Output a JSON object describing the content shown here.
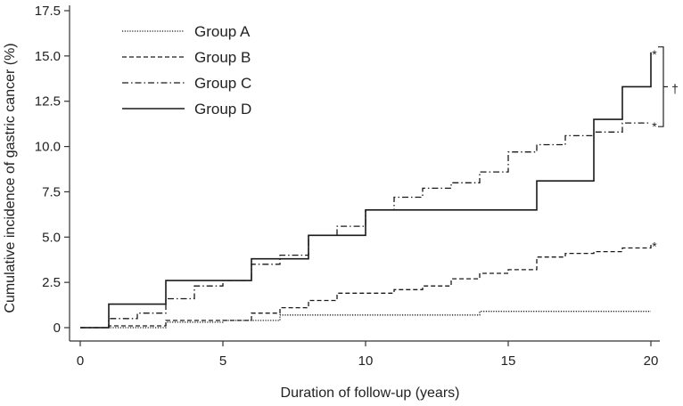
{
  "chart_data": {
    "type": "line",
    "step": true,
    "xlabel": "Duration of follow-up (years)",
    "ylabel": "Cumulative incidence of gastric cancer  (%)",
    "xlim": [
      0,
      20
    ],
    "ylim": [
      0,
      17.5
    ],
    "xticks": [
      {
        "value": 0,
        "label": "0"
      },
      {
        "value": 5,
        "label": "5"
      },
      {
        "value": 10,
        "label": "10"
      },
      {
        "value": 15,
        "label": "15"
      },
      {
        "value": 20,
        "label": "20"
      }
    ],
    "yticks": [
      {
        "value": 0,
        "label": "0"
      },
      {
        "value": 2.5,
        "label": "2.5"
      },
      {
        "value": 5,
        "label": "5.0"
      },
      {
        "value": 7.5,
        "label": "7.5"
      },
      {
        "value": 10,
        "label": "10.0"
      },
      {
        "value": 12.5,
        "label": "12.5"
      },
      {
        "value": 15,
        "label": "15.0"
      },
      {
        "value": 17.5,
        "label": "17.5"
      }
    ],
    "grid": false,
    "legend_position": "top-left",
    "series": [
      {
        "name": "Group A",
        "line_style": "dotted",
        "points": [
          [
            0,
            0
          ],
          [
            3,
            0
          ],
          [
            3,
            0.3
          ],
          [
            5,
            0.3
          ],
          [
            5,
            0.4
          ],
          [
            7,
            0.4
          ],
          [
            7,
            0.7
          ],
          [
            14,
            0.7
          ],
          [
            14,
            0.9
          ],
          [
            20,
            0.9
          ]
        ]
      },
      {
        "name": "Group B",
        "line_style": "dashed",
        "points": [
          [
            0,
            0
          ],
          [
            1,
            0
          ],
          [
            1,
            0.1
          ],
          [
            3,
            0.1
          ],
          [
            3,
            0.4
          ],
          [
            6,
            0.4
          ],
          [
            6,
            0.8
          ],
          [
            7,
            0.8
          ],
          [
            7,
            1.1
          ],
          [
            8,
            1.1
          ],
          [
            8,
            1.5
          ],
          [
            9,
            1.5
          ],
          [
            9,
            1.9
          ],
          [
            11,
            1.9
          ],
          [
            11,
            2.1
          ],
          [
            12,
            2.1
          ],
          [
            12,
            2.3
          ],
          [
            13,
            2.3
          ],
          [
            13,
            2.7
          ],
          [
            14,
            2.7
          ],
          [
            14,
            3.0
          ],
          [
            15,
            3.0
          ],
          [
            15,
            3.2
          ],
          [
            16,
            3.2
          ],
          [
            16,
            3.9
          ],
          [
            17,
            3.9
          ],
          [
            17,
            4.1
          ],
          [
            18,
            4.1
          ],
          [
            18,
            4.2
          ],
          [
            19,
            4.2
          ],
          [
            19,
            4.4
          ],
          [
            20,
            4.4
          ],
          [
            20,
            4.6
          ]
        ]
      },
      {
        "name": "Group C",
        "line_style": "dash-dot",
        "points": [
          [
            0,
            0
          ],
          [
            1,
            0
          ],
          [
            1,
            0.5
          ],
          [
            2,
            0.5
          ],
          [
            2,
            0.8
          ],
          [
            3,
            0.8
          ],
          [
            3,
            1.6
          ],
          [
            4,
            1.6
          ],
          [
            4,
            2.3
          ],
          [
            5,
            2.3
          ],
          [
            5,
            2.6
          ],
          [
            6,
            2.6
          ],
          [
            6,
            3.5
          ],
          [
            7,
            3.5
          ],
          [
            7,
            4.0
          ],
          [
            8,
            4.0
          ],
          [
            8,
            5.1
          ],
          [
            9,
            5.1
          ],
          [
            9,
            5.6
          ],
          [
            10,
            5.6
          ],
          [
            10,
            6.5
          ],
          [
            11,
            6.5
          ],
          [
            11,
            7.2
          ],
          [
            12,
            7.2
          ],
          [
            12,
            7.7
          ],
          [
            13,
            7.7
          ],
          [
            13,
            8.0
          ],
          [
            14,
            8.0
          ],
          [
            14,
            8.6
          ],
          [
            15,
            8.6
          ],
          [
            15,
            9.7
          ],
          [
            16,
            9.7
          ],
          [
            16,
            10.1
          ],
          [
            17,
            10.1
          ],
          [
            17,
            10.6
          ],
          [
            18,
            10.6
          ],
          [
            18,
            10.8
          ],
          [
            19,
            10.8
          ],
          [
            19,
            11.3
          ],
          [
            20,
            11.3
          ]
        ]
      },
      {
        "name": "Group D",
        "line_style": "solid",
        "points": [
          [
            0,
            0
          ],
          [
            1,
            0
          ],
          [
            1,
            1.3
          ],
          [
            3,
            1.3
          ],
          [
            3,
            2.6
          ],
          [
            6,
            2.6
          ],
          [
            6,
            3.8
          ],
          [
            8,
            3.8
          ],
          [
            8,
            5.1
          ],
          [
            10,
            5.1
          ],
          [
            10,
            6.5
          ],
          [
            16,
            6.5
          ],
          [
            16,
            8.1
          ],
          [
            18,
            8.1
          ],
          [
            18,
            11.5
          ],
          [
            19,
            11.5
          ],
          [
            19,
            13.3
          ],
          [
            20,
            13.3
          ],
          [
            20,
            15.2
          ]
        ]
      }
    ],
    "annotations": [
      {
        "text": "*",
        "x": 20.4,
        "y": 15.3
      },
      {
        "text": "*",
        "x": 20.4,
        "y": 11.3
      },
      {
        "text": "*",
        "x": 20.4,
        "y": 4.7
      },
      {
        "text": "†",
        "x": 21.0,
        "y": 13.3
      }
    ]
  }
}
